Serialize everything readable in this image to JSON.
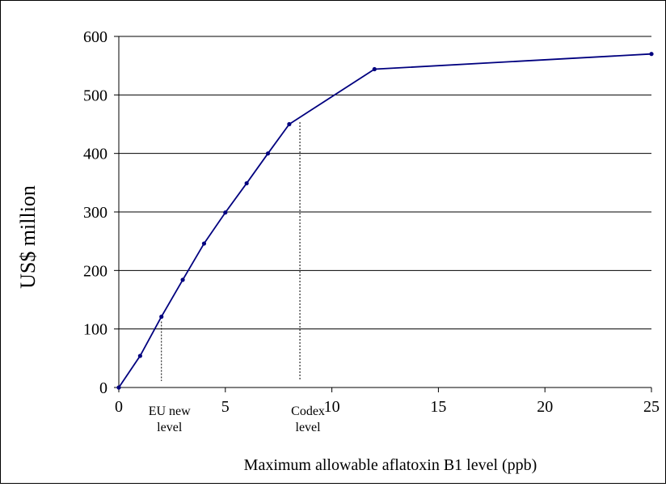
{
  "chart_data": {
    "type": "line",
    "xlabel": "Maximum allowable aflatoxin B1 level (ppb)",
    "ylabel": "US$ million",
    "xlim": [
      0,
      25
    ],
    "ylim": [
      0,
      600
    ],
    "x_ticks": [
      0,
      5,
      10,
      15,
      20,
      25
    ],
    "y_ticks": [
      0,
      100,
      200,
      300,
      400,
      500,
      600
    ],
    "grid": "horizontal",
    "series": [
      {
        "color": "#00007f",
        "x": [
          0,
          1,
          2,
          3,
          4,
          5,
          6,
          7,
          8,
          12,
          25
        ],
        "y": [
          0,
          54,
          121,
          184,
          246,
          299,
          349,
          400,
          450,
          544,
          570
        ]
      }
    ],
    "annotations": [
      {
        "x": 2,
        "label_lines": [
          "EU new",
          "level"
        ]
      },
      {
        "x": 8.5,
        "label_lines": [
          "Codex",
          "level"
        ]
      }
    ]
  }
}
